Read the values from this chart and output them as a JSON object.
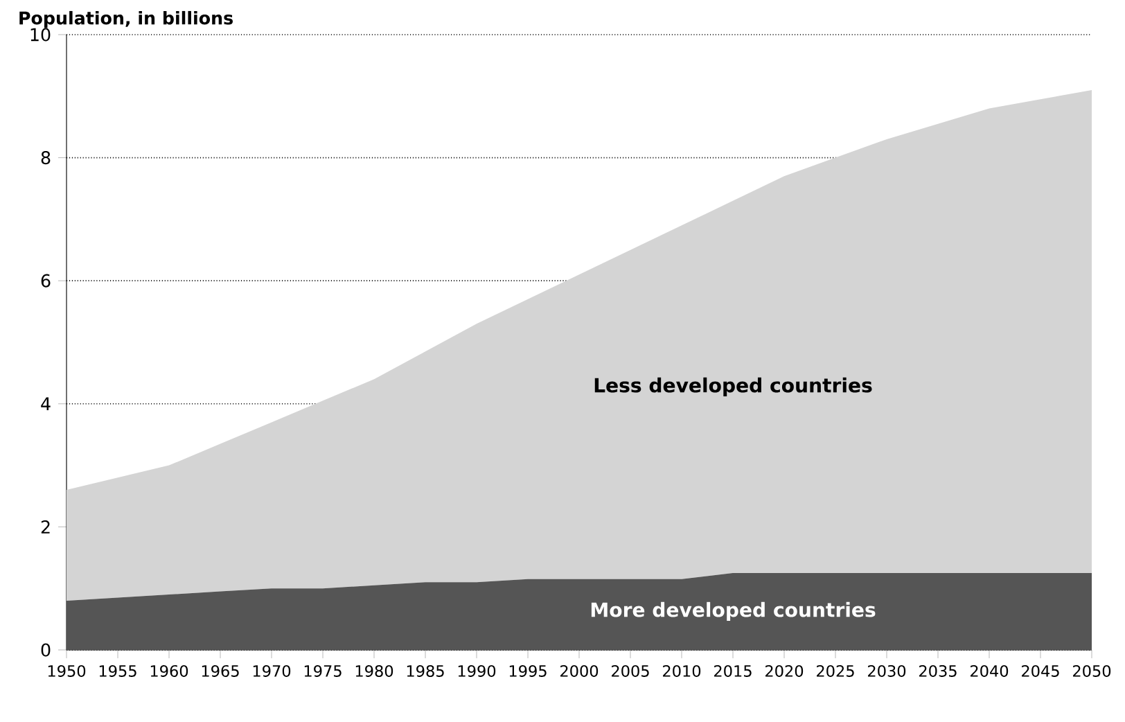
{
  "chart_data": {
    "type": "area",
    "title": "Population, in billions",
    "stacked": true,
    "grid": "y",
    "x": [
      1950,
      1955,
      1960,
      1965,
      1970,
      1975,
      1980,
      1985,
      1990,
      1995,
      2000,
      2005,
      2010,
      2015,
      2020,
      2025,
      2030,
      2035,
      2040,
      2045,
      2050
    ],
    "series": [
      {
        "name": "More developed countries",
        "color": "#555555",
        "values": [
          0.8,
          0.85,
          0.9,
          0.95,
          1.0,
          1.0,
          1.05,
          1.1,
          1.1,
          1.15,
          1.15,
          1.15,
          1.15,
          1.25,
          1.25,
          1.25,
          1.25,
          1.25,
          1.25,
          1.25,
          1.25
        ]
      },
      {
        "name": "Less developed countries",
        "color": "#d4d4d4",
        "values": [
          1.8,
          1.95,
          2.1,
          2.4,
          2.7,
          3.05,
          3.35,
          3.75,
          4.2,
          4.55,
          4.95,
          5.35,
          5.75,
          6.05,
          6.45,
          6.75,
          7.05,
          7.3,
          7.55,
          7.7,
          7.85
        ]
      }
    ],
    "xlim": [
      1950,
      2050
    ],
    "xticks": [
      1950,
      1955,
      1960,
      1965,
      1970,
      1975,
      1980,
      1985,
      1990,
      1995,
      2000,
      2005,
      2010,
      2015,
      2020,
      2025,
      2030,
      2035,
      2040,
      2045,
      2050
    ],
    "ylim": [
      0,
      10
    ],
    "yticks": [
      0,
      2,
      4,
      6,
      8,
      10
    ]
  }
}
